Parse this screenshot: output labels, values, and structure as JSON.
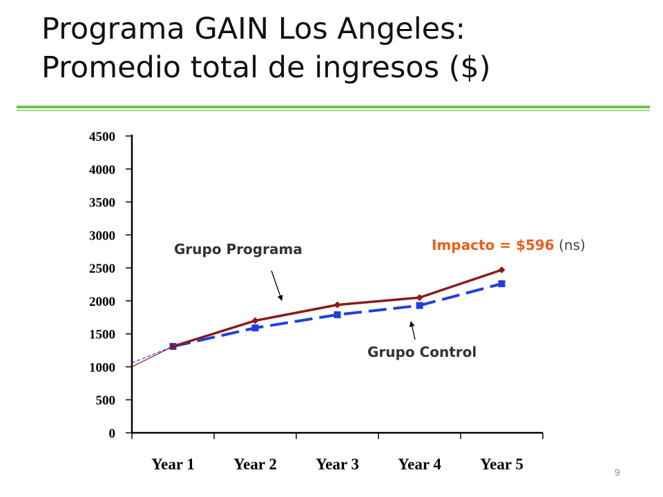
{
  "slide": {
    "title_line1": "Programa GAIN Los Angeles:",
    "title_line2": "Promedio total de ingresos ($)",
    "page_number": "9"
  },
  "colors": {
    "accent_rule": "#6cc04a",
    "programa_series": "#8b1a1a",
    "control_series": "#1f3fe0",
    "impact_text": "#e8601c"
  },
  "chart_data": {
    "type": "line",
    "title": "",
    "xlabel": "",
    "ylabel": "",
    "categories": [
      "Year 1",
      "Year 2",
      "Year 3",
      "Year 4",
      "Year 5"
    ],
    "y_ticks": [
      0,
      500,
      1000,
      1500,
      2000,
      2500,
      3000,
      3500,
      4000,
      4500
    ],
    "ylim": [
      0,
      4500
    ],
    "grid": false,
    "series": [
      {
        "name": "Grupo Programa",
        "values": [
          1310,
          1700,
          1940,
          2050,
          2470
        ],
        "start_value": 1000,
        "style": "solid-diamond"
      },
      {
        "name": "Grupo Control",
        "values": [
          1310,
          1590,
          1790,
          1930,
          2260
        ],
        "start_value": 1060,
        "style": "dashed-square"
      }
    ],
    "annotations": {
      "programa_label": "Grupo Programa",
      "control_label": "Grupo Control",
      "impact_prefix": "Impacto = ",
      "impact_value": "$596",
      "impact_suffix": " (ns)"
    }
  }
}
